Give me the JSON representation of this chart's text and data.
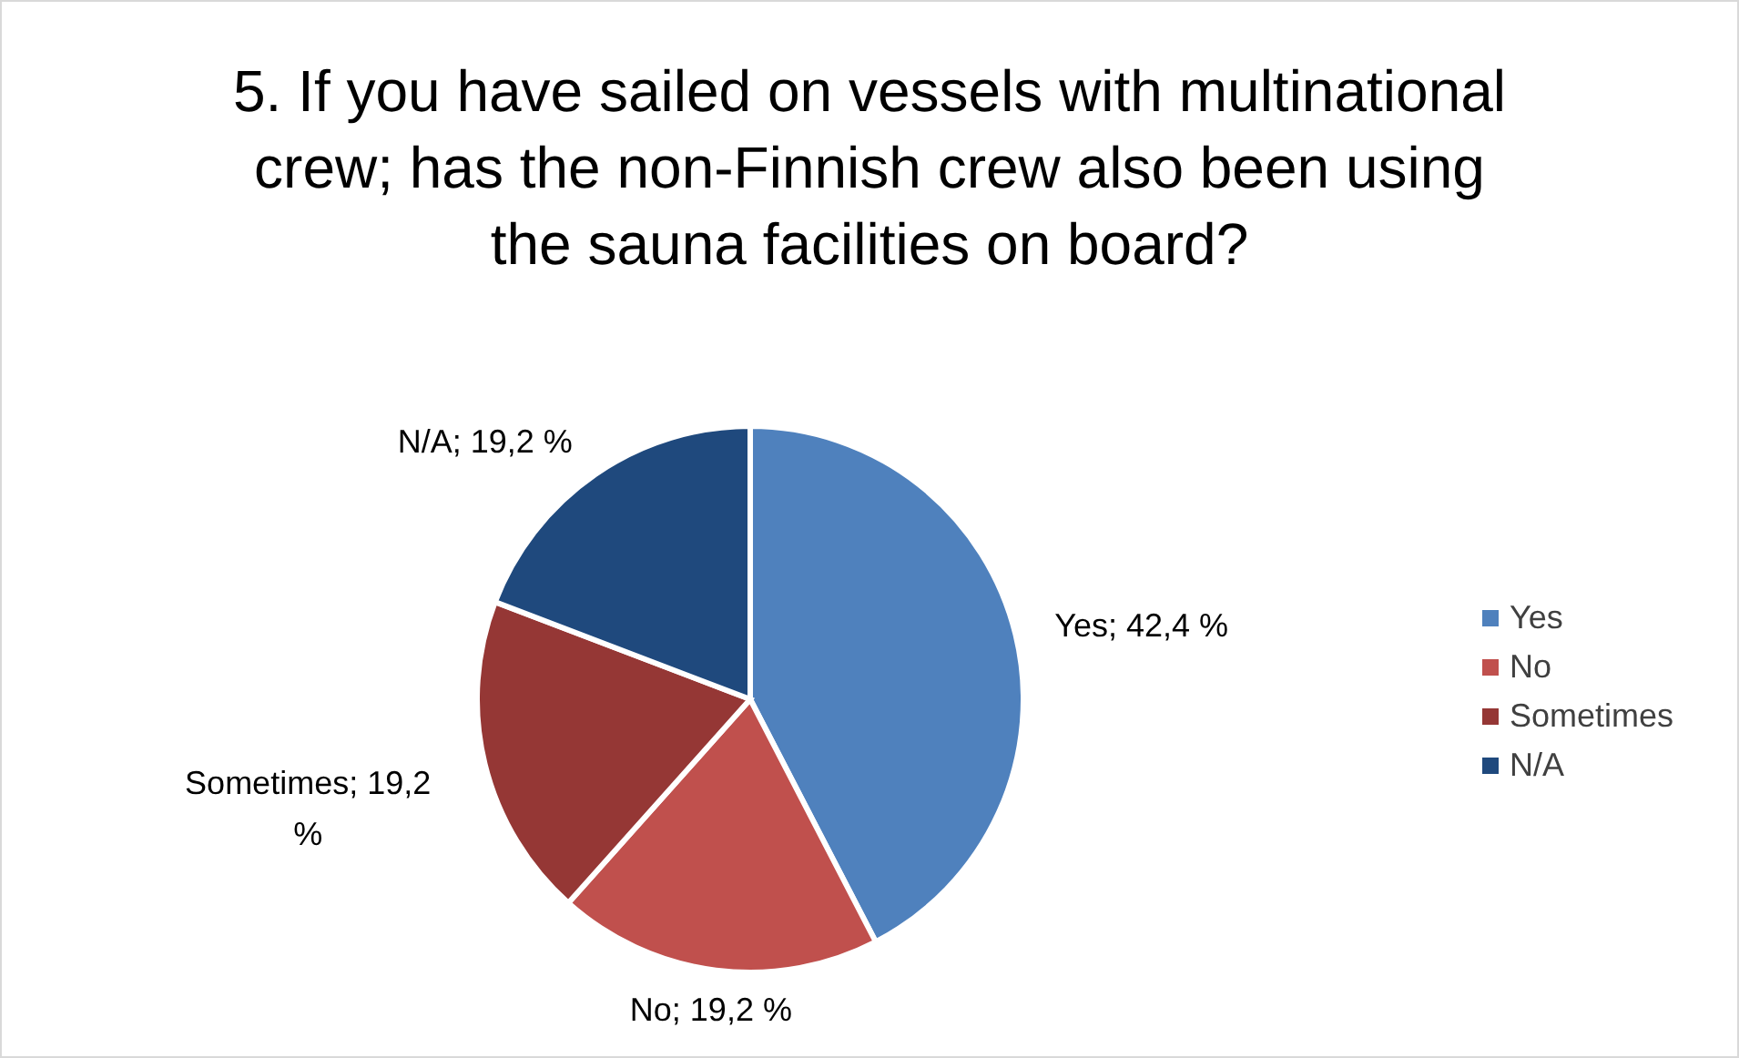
{
  "chart_data": {
    "type": "pie",
    "title": "5. If you have sailed on vessels with multinational crew; has the non-Finnish crew also been using the sauna facilities on board?",
    "categories": [
      "Yes",
      "No",
      "Sometimes",
      "N/A"
    ],
    "values": [
      42.4,
      19.2,
      19.2,
      19.2
    ],
    "colors": [
      "#4f81bd",
      "#c0504d",
      "#953735",
      "#1f497d"
    ],
    "value_labels": [
      "Yes; 42,4 %",
      "No; 19,2 %",
      "Sometimes; 19,2 %",
      "N/A; 19,2 %"
    ],
    "legend": "right"
  }
}
